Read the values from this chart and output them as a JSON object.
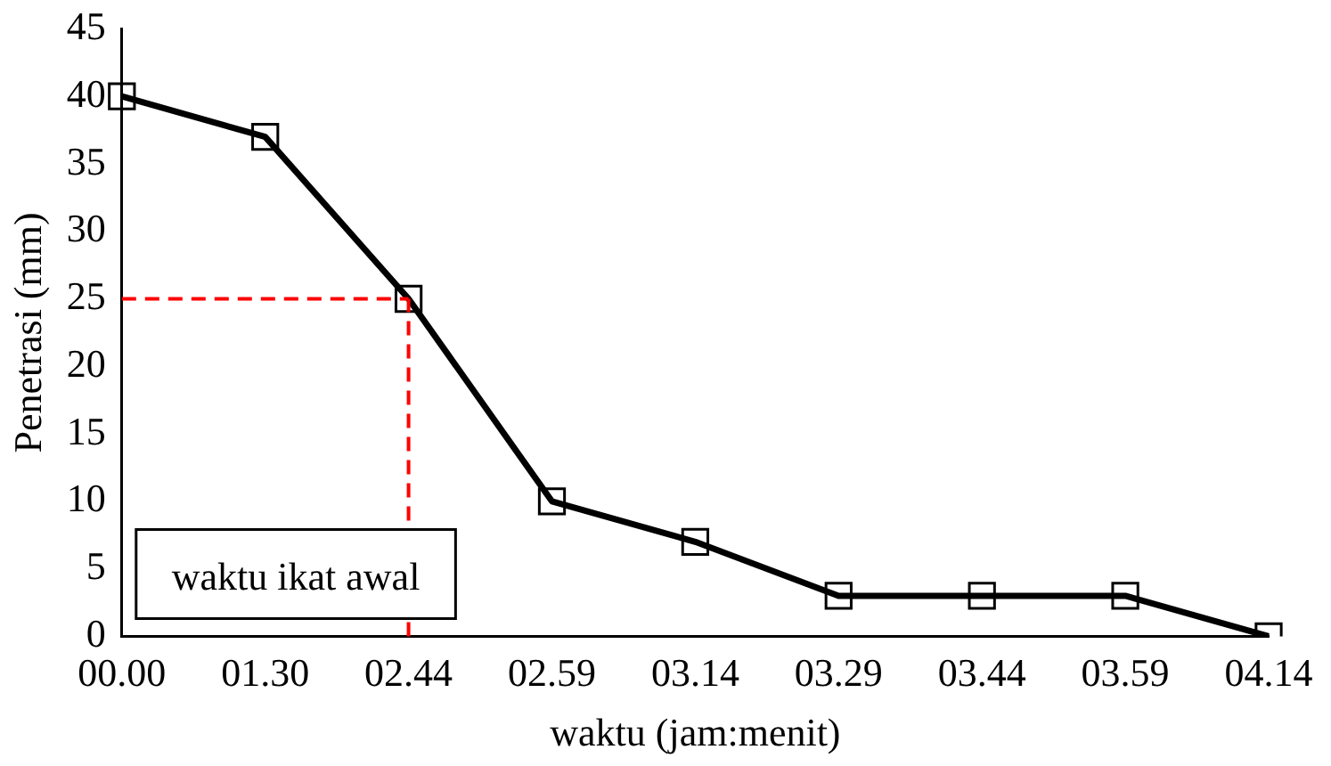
{
  "chart_data": {
    "type": "line",
    "xlabel": "waktu (jam:menit)",
    "ylabel": "Penetrasi (mm)",
    "categories": [
      "00.00",
      "01.30",
      "02.44",
      "02.59",
      "03.14",
      "03.29",
      "03.44",
      "03.59",
      "04.14"
    ],
    "series": [
      {
        "color": "#000000",
        "values": [
          40,
          37,
          25,
          10,
          7,
          3,
          3,
          3,
          0
        ]
      }
    ],
    "ylim": [
      0,
      45
    ],
    "yticks": [
      0,
      5,
      10,
      15,
      20,
      25,
      30,
      35,
      40,
      45
    ],
    "marker": "square",
    "line_style": "solid",
    "grid": false,
    "legend": false,
    "ref_lines": [
      {
        "axis": "y",
        "value": 25,
        "color": "#ff0000",
        "line_style": "dashed"
      },
      {
        "axis": "x",
        "value": "02.44",
        "color": "#ff0000",
        "line_style": "dashed"
      }
    ],
    "annotations": [
      "waktu ikat awal"
    ]
  }
}
